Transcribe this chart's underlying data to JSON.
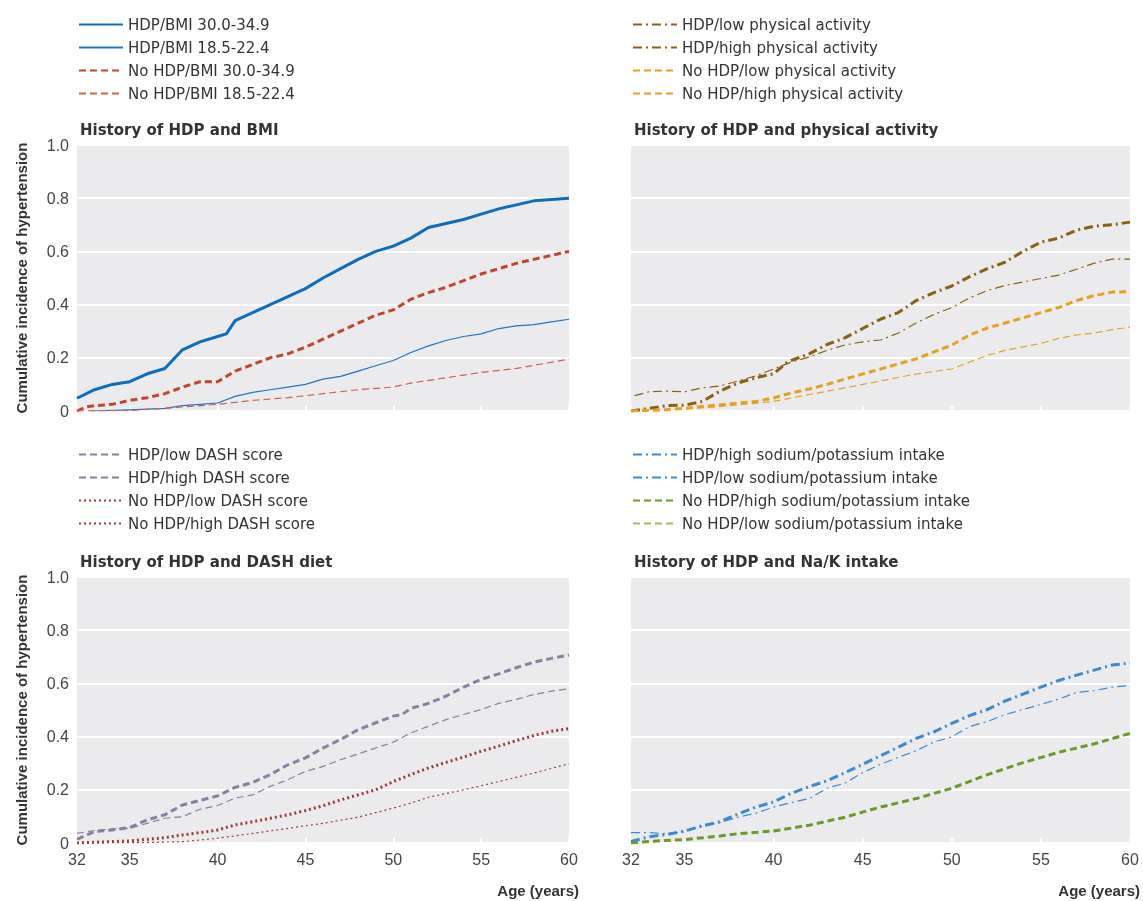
{
  "chart_data": [
    {
      "type": "line",
      "title": "History of HDP and BMI",
      "ylabel": "Cumulative incidence of hypertension",
      "xlim": [
        32,
        60
      ],
      "xticks": [
        32,
        35,
        40,
        45,
        50,
        55,
        60
      ],
      "ylim": [
        0,
        1
      ],
      "yticks": [
        0,
        0.2,
        0.4,
        0.6,
        0.8,
        {
          "value": 1,
          "label": "1.0"
        }
      ],
      "grid": "y",
      "legend": "top left",
      "marker": "none",
      "tick_labels": "y",
      "series": [
        {
          "name": "HDP/BMI 30.0-34.9",
          "color": "#0a6ebd",
          "line_style": "solid",
          "x": [
            32,
            33,
            34,
            35,
            36,
            37,
            38,
            39,
            40,
            40.5,
            41,
            42,
            43,
            44,
            45,
            46,
            47,
            48,
            49,
            50,
            51,
            52,
            53,
            54,
            55,
            56,
            57,
            58,
            59,
            60
          ],
          "values": [
            0.048,
            0.08,
            0.1,
            0.11,
            0.14,
            0.16,
            0.23,
            0.26,
            0.28,
            0.29,
            0.34,
            0.37,
            0.4,
            0.43,
            0.46,
            0.5,
            0.535,
            0.57,
            0.6,
            0.62,
            0.65,
            0.69,
            0.705,
            0.72,
            0.74,
            0.76,
            0.775,
            0.79,
            0.795,
            0.8
          ]
        },
        {
          "name": "HDP/BMI 18.5-22.4",
          "color": "#1c76c4",
          "line_style": "solid",
          "x": [
            32.8,
            35,
            37,
            38,
            39,
            40,
            41,
            42,
            43,
            44,
            45,
            46,
            47,
            48,
            49,
            50,
            51,
            52,
            53,
            54,
            55,
            56,
            57,
            58,
            59,
            60
          ],
          "values": [
            0,
            0.004,
            0.01,
            0.02,
            0.025,
            0.03,
            0.055,
            0.07,
            0.08,
            0.09,
            0.1,
            0.12,
            0.13,
            0.15,
            0.17,
            0.19,
            0.22,
            0.245,
            0.265,
            0.28,
            0.29,
            0.31,
            0.32,
            0.325,
            0.335,
            0.345
          ]
        },
        {
          "name": "No HDP/BMI 30.0-34.9",
          "color": "#c0462c",
          "line_style": "dashed",
          "x": [
            32,
            32.5,
            33,
            34,
            35,
            36,
            37,
            38,
            39,
            40,
            41,
            42,
            43,
            44,
            45,
            46,
            47,
            48,
            49,
            50,
            51,
            52,
            53,
            54,
            55,
            56,
            57,
            58,
            59,
            60
          ],
          "values": [
            0,
            0.015,
            0.02,
            0.025,
            0.04,
            0.05,
            0.065,
            0.09,
            0.11,
            0.11,
            0.15,
            0.175,
            0.2,
            0.215,
            0.24,
            0.27,
            0.3,
            0.33,
            0.36,
            0.38,
            0.42,
            0.445,
            0.465,
            0.49,
            0.515,
            0.535,
            0.555,
            0.57,
            0.585,
            0.6
          ]
        },
        {
          "name": "No HDP/BMI 18.5-22.4",
          "color": "#d2604a",
          "line_style": "dashed",
          "x": [
            32,
            35,
            37,
            38,
            40,
            42,
            44,
            46,
            48,
            50,
            51,
            53,
            55,
            57,
            60
          ],
          "values": [
            0,
            0.002,
            0.01,
            0.015,
            0.025,
            0.04,
            0.05,
            0.065,
            0.08,
            0.09,
            0.105,
            0.125,
            0.145,
            0.16,
            0.195
          ]
        }
      ]
    },
    {
      "type": "line",
      "title": "History of HDP and physical activity",
      "xlim": [
        32,
        60
      ],
      "xticks": [
        32,
        35,
        40,
        45,
        50,
        55,
        60
      ],
      "ylim": [
        0,
        1
      ],
      "yticks": [
        0,
        0.2,
        0.4,
        0.6,
        0.8,
        1
      ],
      "grid": "y",
      "legend": "top left",
      "marker": "none",
      "tick_labels": false,
      "series": [
        {
          "name": "HDP/low physical activity",
          "color": "#8a6110",
          "line_style": "dashdot",
          "x": [
            32,
            33,
            34,
            35,
            36,
            37,
            38,
            39,
            40,
            40.8,
            41,
            42,
            43,
            44,
            45,
            46,
            47,
            48,
            49,
            50,
            51,
            52,
            53,
            54,
            55,
            56,
            57,
            58,
            59,
            60
          ],
          "values": [
            0,
            0.01,
            0.02,
            0.022,
            0.036,
            0.075,
            0.105,
            0.125,
            0.14,
            0.185,
            0.19,
            0.215,
            0.25,
            0.275,
            0.31,
            0.345,
            0.37,
            0.415,
            0.445,
            0.47,
            0.505,
            0.535,
            0.56,
            0.6,
            0.635,
            0.65,
            0.68,
            0.695,
            0.7,
            0.71
          ]
        },
        {
          "name": "HDP/high physical activity",
          "color": "#8a6110",
          "line_style": "dashdot",
          "x": [
            32.2,
            33,
            34,
            35,
            36,
            37,
            38,
            39,
            40,
            41,
            42,
            43,
            44,
            45,
            46,
            47,
            48,
            49,
            50,
            51,
            52,
            53,
            54,
            55,
            56,
            57,
            58,
            59,
            60
          ],
          "values": [
            0.058,
            0.072,
            0.075,
            0.072,
            0.087,
            0.094,
            0.113,
            0.132,
            0.158,
            0.184,
            0.203,
            0.228,
            0.248,
            0.26,
            0.267,
            0.293,
            0.331,
            0.363,
            0.389,
            0.425,
            0.453,
            0.472,
            0.485,
            0.498,
            0.511,
            0.533,
            0.556,
            0.571,
            0.571
          ]
        },
        {
          "name": "No HDP/low physical activity",
          "color": "#e8a020",
          "line_style": "dashed",
          "x": [
            32,
            34,
            35,
            36,
            37,
            38,
            39,
            40,
            41,
            42,
            43,
            44,
            45,
            46,
            47,
            48,
            49,
            50,
            51,
            52,
            53,
            54,
            55,
            56,
            57,
            58,
            59,
            60
          ],
          "values": [
            0,
            0.005,
            0.01,
            0.017,
            0.023,
            0.03,
            0.036,
            0.049,
            0.068,
            0.083,
            0.1,
            0.12,
            0.139,
            0.158,
            0.177,
            0.196,
            0.222,
            0.248,
            0.286,
            0.312,
            0.331,
            0.35,
            0.37,
            0.389,
            0.415,
            0.434,
            0.447,
            0.449
          ]
        },
        {
          "name": "No HDP/high physical activity",
          "color": "#e8a020",
          "line_style": "dashed",
          "x": [
            32,
            35,
            37,
            38,
            40,
            42,
            44,
            46,
            48,
            50,
            51,
            52,
            53,
            54,
            55,
            56,
            57,
            58,
            59,
            60
          ],
          "values": [
            0,
            0.008,
            0.017,
            0.023,
            0.036,
            0.062,
            0.087,
            0.113,
            0.139,
            0.158,
            0.184,
            0.209,
            0.228,
            0.241,
            0.254,
            0.273,
            0.286,
            0.293,
            0.306,
            0.315
          ]
        }
      ]
    },
    {
      "type": "line",
      "title": "History of HDP and DASH diet",
      "xlabel": "Age (years)",
      "ylabel": "Cumulative incidence of hypertension",
      "xlim": [
        32,
        60
      ],
      "xticks": [
        32,
        35,
        40,
        45,
        50,
        55,
        60
      ],
      "ylim": [
        0,
        1
      ],
      "yticks": [
        0,
        0.2,
        0.4,
        0.6,
        0.8,
        {
          "value": 1,
          "label": "1.0"
        }
      ],
      "grid": "y",
      "legend": "top left",
      "marker": "none",
      "series": [
        {
          "name": "HDP/low DASH score",
          "color": "#8a7fa0",
          "line_style": "dashed",
          "x": [
            32,
            33,
            34,
            35,
            36,
            37,
            38,
            39,
            40,
            41,
            42,
            43,
            44,
            45,
            46,
            47,
            48,
            49,
            50,
            50.5,
            51,
            52,
            53,
            54,
            55,
            56,
            57,
            58,
            59,
            60
          ],
          "values": [
            0.014,
            0.043,
            0.049,
            0.058,
            0.087,
            0.106,
            0.143,
            0.16,
            0.177,
            0.209,
            0.228,
            0.257,
            0.294,
            0.32,
            0.357,
            0.389,
            0.426,
            0.452,
            0.477,
            0.483,
            0.506,
            0.525,
            0.552,
            0.586,
            0.615,
            0.636,
            0.659,
            0.68,
            0.694,
            0.707
          ]
        },
        {
          "name": "HDP/high DASH score",
          "color": "#8a7fa0",
          "line_style": "dashed",
          "x": [
            32,
            33,
            34,
            35,
            36,
            37,
            38,
            39,
            40,
            41,
            42,
            43,
            44,
            45,
            46,
            47,
            48,
            49,
            50,
            51,
            52,
            53,
            54,
            55,
            56,
            57,
            58,
            59,
            60
          ],
          "values": [
            0.036,
            0.047,
            0.053,
            0.055,
            0.074,
            0.093,
            0.099,
            0.127,
            0.141,
            0.169,
            0.181,
            0.213,
            0.238,
            0.269,
            0.288,
            0.313,
            0.335,
            0.357,
            0.379,
            0.414,
            0.439,
            0.464,
            0.483,
            0.502,
            0.525,
            0.54,
            0.558,
            0.571,
            0.58
          ]
        },
        {
          "name": "No HDP/low DASH score",
          "color": "#9c3b35",
          "line_style": "dotted",
          "x": [
            32,
            35,
            37,
            38,
            39,
            40,
            41,
            42,
            43,
            44,
            45,
            46,
            47,
            48,
            49,
            50,
            51,
            52,
            53,
            54,
            55,
            56,
            57,
            58,
            59,
            60
          ],
          "values": [
            0,
            0.008,
            0.02,
            0.03,
            0.039,
            0.049,
            0.068,
            0.08,
            0.093,
            0.106,
            0.122,
            0.14,
            0.162,
            0.181,
            0.2,
            0.231,
            0.257,
            0.282,
            0.303,
            0.323,
            0.345,
            0.364,
            0.385,
            0.404,
            0.42,
            0.43
          ]
        },
        {
          "name": "No HDP/high DASH score",
          "color": "#9c3b35",
          "line_style": "dotted",
          "x": [
            32,
            36,
            38,
            40,
            42,
            44,
            46,
            48,
            50,
            51,
            52,
            54,
            56,
            58,
            60
          ],
          "values": [
            0,
            0.002,
            0.005,
            0.018,
            0.036,
            0.055,
            0.074,
            0.097,
            0.131,
            0.15,
            0.172,
            0.2,
            0.231,
            0.263,
            0.298
          ]
        }
      ]
    },
    {
      "type": "line",
      "title": "History of HDP and Na/K intake",
      "xlabel": "Age (years)",
      "xlim": [
        32,
        60
      ],
      "xticks": [
        32,
        35,
        40,
        45,
        50,
        55,
        60
      ],
      "ylim": [
        0,
        1
      ],
      "yticks": [
        0,
        0.2,
        0.4,
        0.6,
        0.8,
        1
      ],
      "grid": "y",
      "legend": "top left",
      "marker": "none",
      "tick_labels": "x",
      "series": [
        {
          "name": "HDP/high sodium/potassium intake",
          "color": "#3a8ad0",
          "line_style": "dashdot",
          "x": [
            32,
            33,
            34,
            35,
            36,
            37,
            38,
            39,
            40,
            41,
            42,
            43,
            44,
            45,
            46,
            47,
            48,
            49,
            50,
            51,
            52,
            53,
            54,
            55,
            56,
            57,
            58,
            59,
            60
          ],
          "values": [
            0.006,
            0.023,
            0.032,
            0.045,
            0.064,
            0.08,
            0.109,
            0.135,
            0.154,
            0.187,
            0.212,
            0.234,
            0.264,
            0.296,
            0.328,
            0.36,
            0.393,
            0.418,
            0.45,
            0.479,
            0.502,
            0.534,
            0.56,
            0.586,
            0.611,
            0.631,
            0.65,
            0.669,
            0.676
          ]
        },
        {
          "name": "HDP/low sodium/potassium intake",
          "color": "#3a8ad0",
          "line_style": "dashdot",
          "x": [
            32,
            33,
            34,
            35,
            36,
            37,
            38,
            39,
            40,
            41,
            42,
            43,
            44,
            45,
            46,
            47,
            48,
            49,
            50,
            51,
            52,
            53,
            54,
            55,
            56,
            57,
            58,
            59,
            60
          ],
          "values": [
            0.039,
            0.039,
            0.035,
            0.042,
            0.064,
            0.077,
            0.097,
            0.112,
            0.135,
            0.152,
            0.167,
            0.206,
            0.225,
            0.264,
            0.296,
            0.322,
            0.347,
            0.38,
            0.399,
            0.438,
            0.457,
            0.483,
            0.502,
            0.521,
            0.541,
            0.566,
            0.573,
            0.586,
            0.592
          ]
        },
        {
          "name": "No HDP/high sodium/potassium intake",
          "color": "#6b9a27",
          "line_style": "dashed",
          "x": [
            32,
            33,
            35,
            37,
            38,
            40,
            42,
            44,
            46,
            48,
            50,
            52,
            54,
            56,
            58,
            60
          ],
          "values": [
            0,
            0.006,
            0.013,
            0.026,
            0.035,
            0.045,
            0.067,
            0.097,
            0.135,
            0.167,
            0.206,
            0.257,
            0.302,
            0.341,
            0.373,
            0.412
          ]
        },
        {
          "name": "No HDP/low sodium/potassium intake",
          "color": "#9dbb5e",
          "line_style": "dashed"
        }
      ]
    }
  ]
}
